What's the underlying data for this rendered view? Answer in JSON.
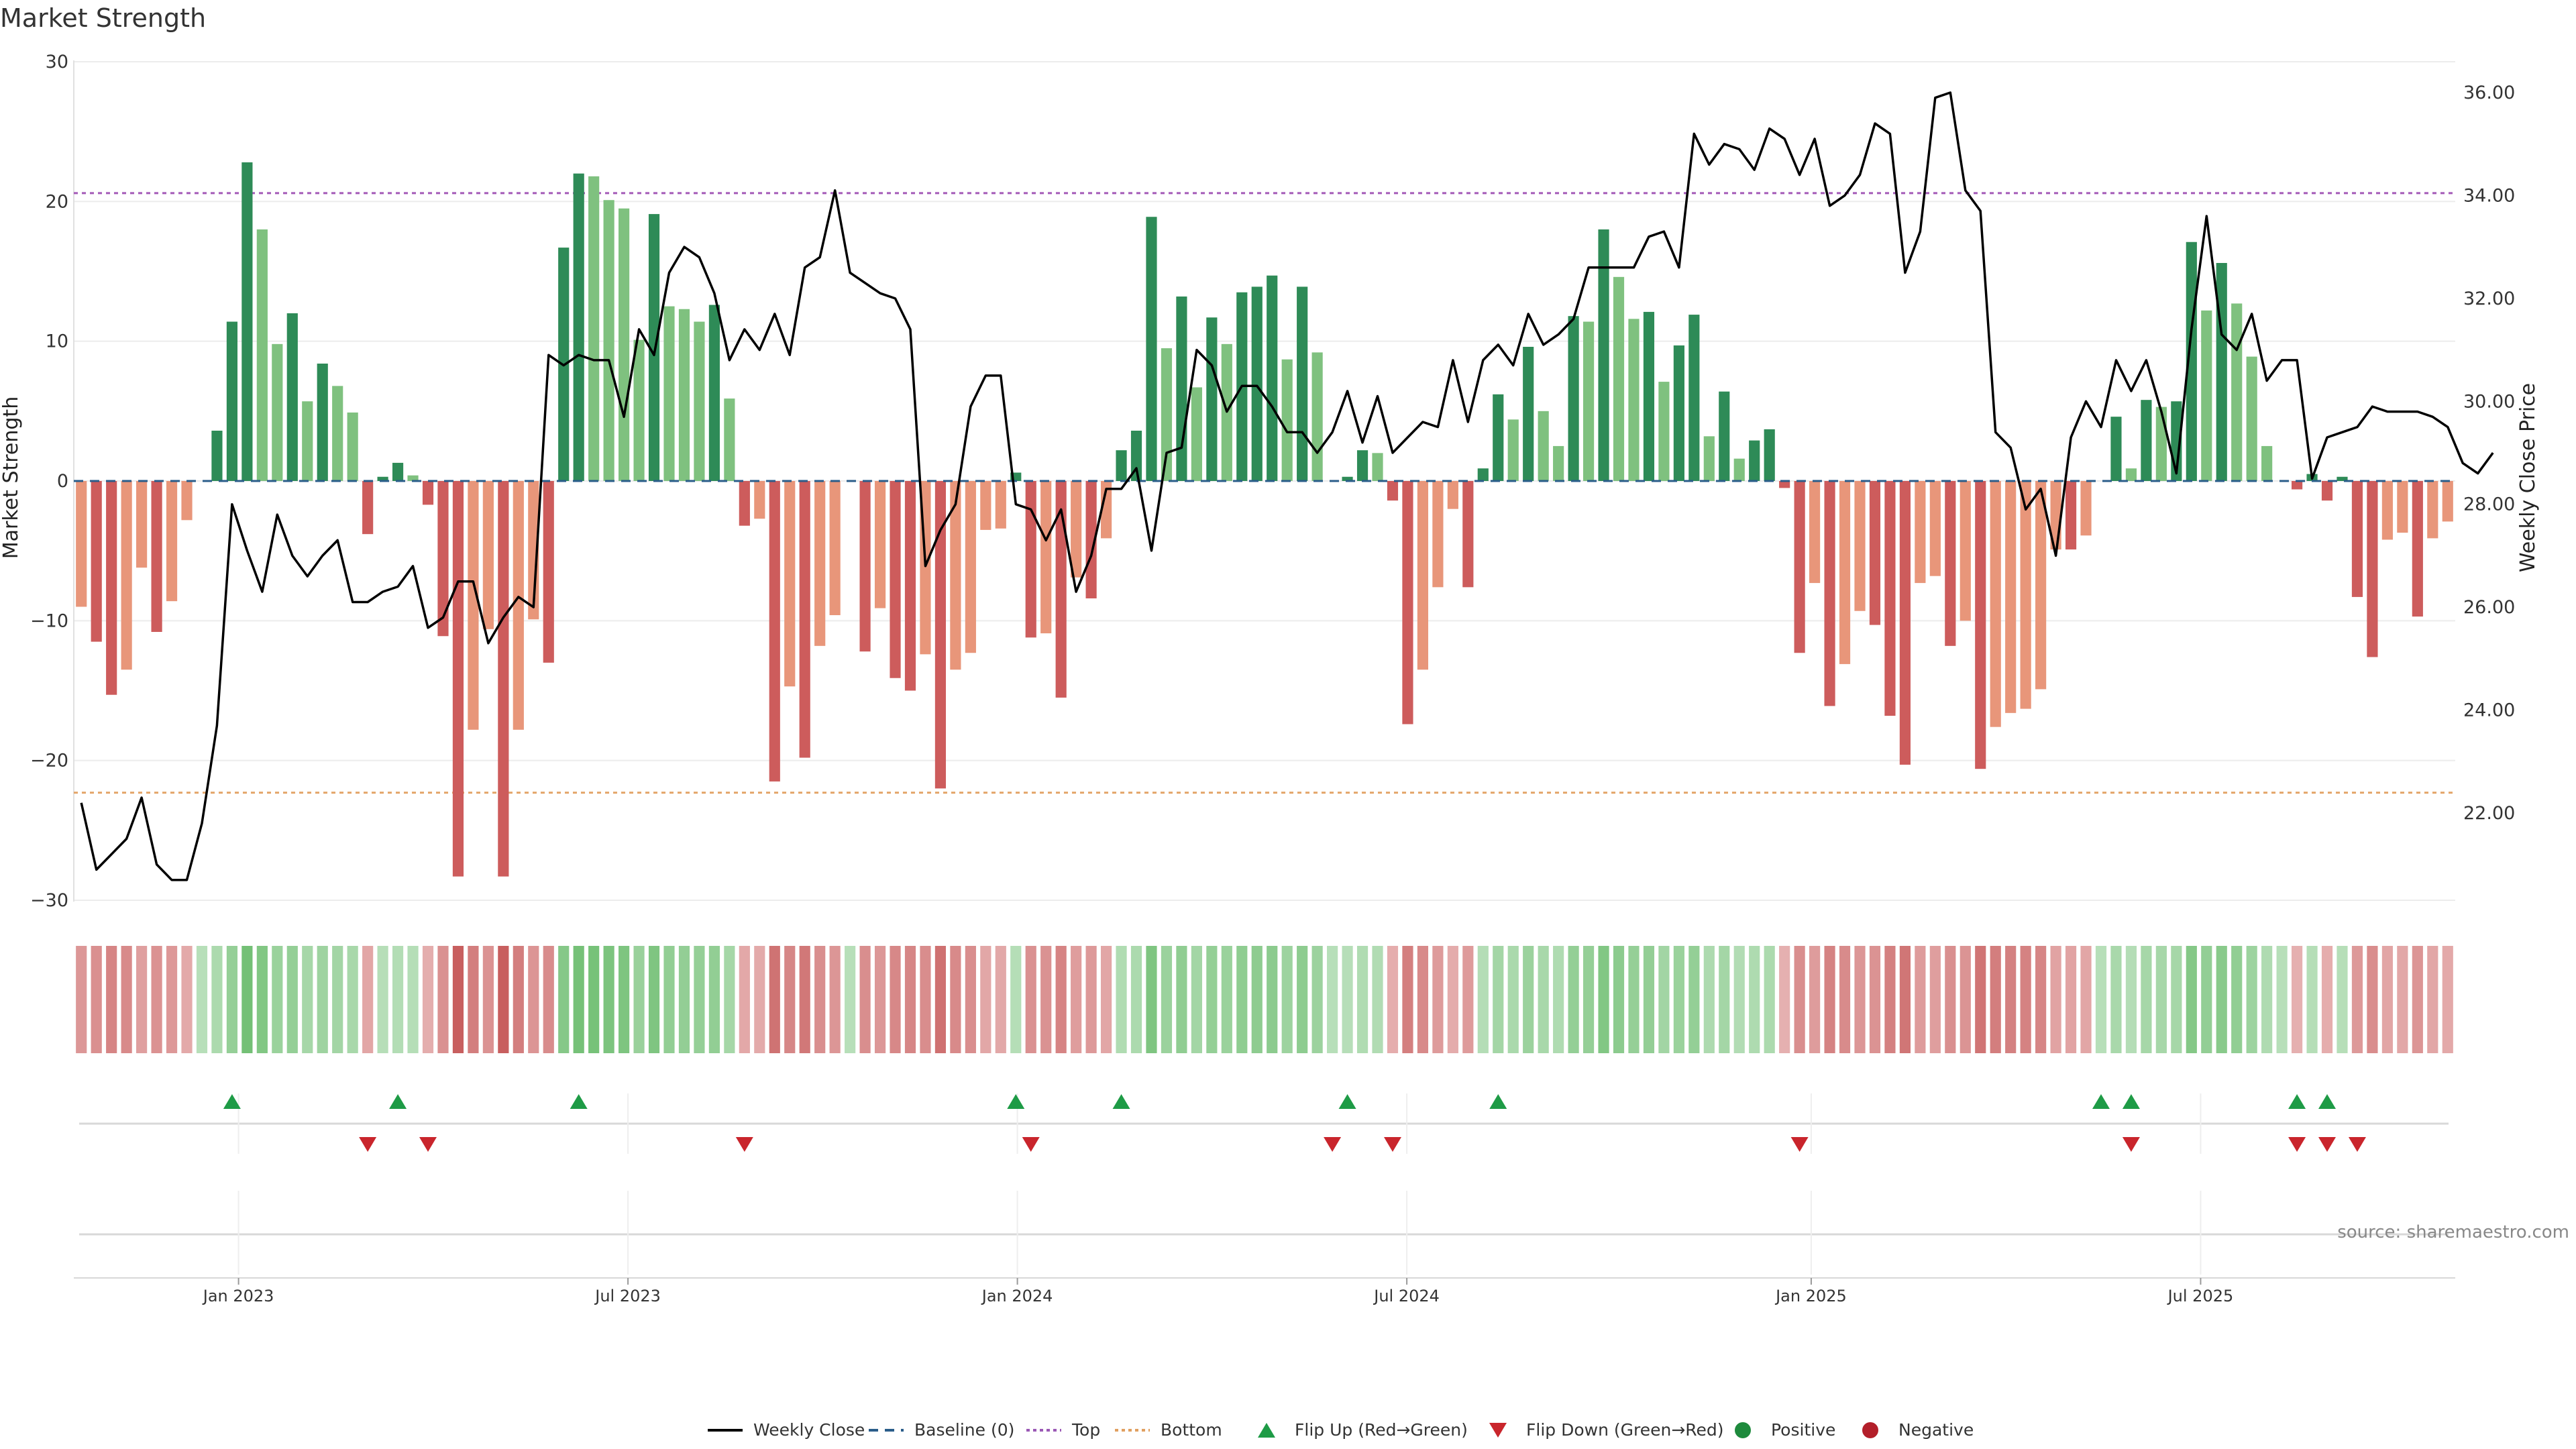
{
  "chart_data": {
    "type": "bar",
    "title": "Market Strength",
    "ylabel": "Market Strength",
    "ylabel_right": "Weekly Close Price",
    "ylim": [
      -30,
      30
    ],
    "ylim_right": [
      20,
      36.6
    ],
    "yticks": [
      30,
      20,
      10,
      0,
      -10,
      -20,
      -30
    ],
    "yticks_right": [
      "36.00",
      "34.00",
      "32.00",
      "30.00",
      "28.00",
      "26.00",
      "24.00",
      "22.00"
    ],
    "top_line": 20.6,
    "bottom_line": -22.3,
    "x_start": "2022-10-17",
    "x_end": "2025-11-03",
    "x_labels": [
      {
        "date": "2023-01-02",
        "label": "Jan 2023"
      },
      {
        "date": "2023-07-03",
        "label": "Jul 2023"
      },
      {
        "date": "2024-01-01",
        "label": "Jan 2024"
      },
      {
        "date": "2024-07-01",
        "label": "Jul 2024"
      },
      {
        "date": "2025-01-06",
        "label": "Jan 2025"
      },
      {
        "date": "2025-07-07",
        "label": "Jul 2025"
      }
    ],
    "strength": [
      -9,
      -11.5,
      -15.3,
      -13.5,
      -6.2,
      -10.8,
      -8.6,
      -2.8,
      0,
      3.6,
      11.4,
      22.8,
      18,
      9.8,
      12,
      5.7,
      8.4,
      6.8,
      4.9,
      -3.8,
      0.3,
      1.3,
      0.4,
      -1.7,
      -11.1,
      -28.3,
      -17.8,
      -10.6,
      -28.3,
      -17.8,
      -9.9,
      -13,
      16.7,
      22,
      21.8,
      20.1,
      19.5,
      10.1,
      19.1,
      12.5,
      12.3,
      11.4,
      12.6,
      5.9,
      -3.2,
      -2.7,
      -21.5,
      -14.7,
      -19.8,
      -11.8,
      -9.6,
      0,
      -12.2,
      -9.1,
      -14.1,
      -15,
      -12.4,
      -22,
      -13.5,
      -12.3,
      -3.5,
      -3.4,
      0.6,
      -11.2,
      -10.9,
      -15.5,
      -6.9,
      -8.4,
      -4.1,
      2.2,
      3.6,
      18.9,
      9.5,
      13.2,
      6.7,
      11.7,
      9.8,
      13.5,
      13.9,
      14.7,
      8.7,
      13.9,
      9.2,
      0,
      0.3,
      2.2,
      2,
      -1.4,
      -17.4,
      -13.5,
      -7.6,
      -2,
      -7.6,
      0.9,
      6.2,
      4.4,
      9.6,
      5,
      2.5,
      11.8,
      11.4,
      18,
      14.6,
      11.6,
      12.1,
      7.1,
      9.7,
      11.9,
      3.2,
      6.4,
      1.6,
      2.9,
      3.7,
      -0.5,
      -12.3,
      -7.3,
      -16.1,
      -13.1,
      -9.3,
      -10.3,
      -16.8,
      -20.3,
      -7.3,
      -6.8,
      -11.8,
      -10,
      -20.6,
      -17.6,
      -16.6,
      -16.3,
      -14.9,
      -4.9,
      -4.9,
      -3.9,
      0,
      4.6,
      0.9,
      5.8,
      5.3,
      5.7,
      17.1,
      12.2,
      15.6,
      12.7,
      8.9,
      2.5,
      0,
      -0.6,
      0.5,
      -1.4,
      0.3,
      -8.3,
      -12.6,
      -4.2,
      -3.7,
      -9.7,
      -4.1,
      -2.9
    ],
    "weekly_close": [
      22.2,
      20.9,
      21.2,
      21.5,
      22.3,
      21.0,
      20.7,
      20.7,
      21.8,
      23.7,
      28.0,
      27.1,
      26.3,
      27.8,
      27.0,
      26.6,
      27.0,
      27.3,
      26.1,
      26.1,
      26.3,
      26.4,
      26.8,
      25.6,
      25.8,
      26.5,
      26.5,
      25.3,
      25.8,
      26.2,
      26.0,
      30.9,
      30.7,
      30.9,
      30.8,
      30.8,
      29.7,
      31.4,
      30.9,
      32.5,
      33.0,
      32.8,
      32.1,
      30.8,
      31.4,
      31.0,
      31.7,
      30.9,
      32.6,
      32.8,
      34.1,
      32.5,
      32.3,
      32.1,
      32.0,
      31.4,
      26.8,
      27.5,
      28.0,
      29.9,
      30.5,
      30.5,
      28.0,
      27.9,
      27.3,
      27.9,
      26.3,
      27.0,
      28.3,
      28.3,
      28.7,
      27.1,
      29.0,
      29.1,
      31.0,
      30.7,
      29.8,
      30.3,
      30.3,
      29.9,
      29.4,
      29.4,
      29.0,
      29.4,
      30.2,
      29.2,
      30.1,
      29.0,
      29.3,
      29.6,
      29.5,
      30.8,
      29.6,
      30.8,
      31.1,
      30.7,
      31.7,
      31.1,
      31.3,
      31.6,
      32.6,
      32.6,
      32.6,
      32.6,
      33.2,
      33.3,
      32.6,
      35.2,
      34.6,
      35.0,
      34.9,
      34.5,
      35.3,
      35.1,
      34.4,
      35.1,
      33.8,
      34.0,
      34.4,
      35.4,
      35.2,
      32.5,
      33.3,
      35.9,
      36.0,
      34.1,
      33.7,
      29.4,
      29.1,
      27.9,
      28.3,
      27.0,
      29.3,
      30.0,
      29.5,
      30.8,
      30.2,
      30.8,
      29.8,
      28.6,
      31.4,
      33.6,
      31.3,
      31.0,
      31.7,
      30.4,
      30.8,
      30.8,
      28.5,
      29.3,
      29.4,
      29.5,
      29.9,
      29.8,
      29.8,
      29.8,
      29.7,
      29.5,
      28.8,
      28.6,
      29.0
    ],
    "heatmap_title": "",
    "flip_up_weeks": [
      10,
      21,
      33,
      62,
      69,
      84,
      94,
      134,
      136,
      147,
      149
    ],
    "flip_down_weeks": [
      19,
      23,
      44,
      63,
      83,
      87,
      114,
      136,
      147,
      149,
      151
    ],
    "series": [
      {
        "name": "Weekly Close",
        "color": "#000000"
      },
      {
        "name": "Baseline (0)",
        "color": "#2a5d8a"
      },
      {
        "name": "Top",
        "color": "#9b59b6"
      },
      {
        "name": "Bottom",
        "color": "#e0a060"
      },
      {
        "name": "Flip Up (Red→Green)",
        "color": "#1e9b46"
      },
      {
        "name": "Flip Down (Green→Red)",
        "color": "#c9252c"
      },
      {
        "name": "Positive",
        "color": "#1e8a3c"
      },
      {
        "name": "Negative",
        "color": "#b31f2a"
      }
    ],
    "source": "source: sharemaestro.com"
  }
}
